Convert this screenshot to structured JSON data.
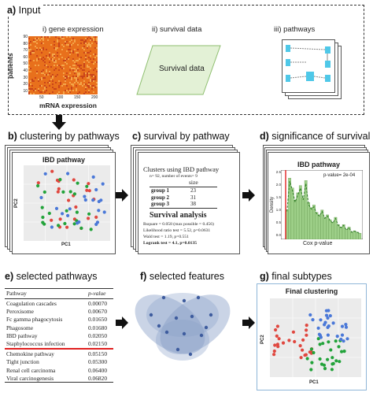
{
  "panel_a": {
    "letter": "a)",
    "title": "Input",
    "sub_i": "i) gene expression",
    "sub_ii": "ii) survival data",
    "sub_iii": "iii) pathways",
    "ylabel": "patients",
    "xlabel": "mRNA expression",
    "yticks": [
      "90",
      "80",
      "70",
      "60",
      "50",
      "40",
      "30",
      "20",
      "10"
    ],
    "xticks": [
      "50",
      "100",
      "150",
      "200"
    ],
    "survival_label": "Survival data"
  },
  "panel_b": {
    "letter": "b)",
    "title": "clustering by pathways",
    "plot_title": "IBD pathway",
    "xlabel": "PC1",
    "ylabel": "PC2"
  },
  "panel_c": {
    "letter": "c)",
    "title": "survival by pathway",
    "heading": "Clusters using IBD pathway",
    "subheading": "n= 92, number of events= 9",
    "size_header": "size",
    "groups": [
      {
        "name": "group 1",
        "size": "23"
      },
      {
        "name": "group 2",
        "size": "31"
      },
      {
        "name": "group 3",
        "size": "38"
      }
    ],
    "analysis_title": "Survival analysis",
    "stats": [
      "Rsquare = 0.058  (max possible = 0.456)",
      "Likelihood ratio test = 5.52,  p=0.0631",
      "Wald test    = 1.19,  p=0.551",
      "Logrank test = 4.1,  p=0.0135"
    ]
  },
  "panel_d": {
    "letter": "d)",
    "title": "significance of survival",
    "plot_title": "IBD pathway",
    "annotation": "p-value= 2e-04",
    "xlabel": "Cox p-value",
    "ylabel": "Density",
    "yticks": [
      "2.5",
      "2.0",
      "1.5",
      "1.0",
      "0.5",
      "0.0"
    ],
    "xticks": [
      "0.00",
      "0.25",
      "0.50",
      "0.75",
      "1.00"
    ]
  },
  "panel_e": {
    "letter": "e)",
    "title": "selected pathways",
    "col_pathway": "Pathway",
    "col_pvalue": "p-value",
    "rows_selected": [
      {
        "pathway": "Coagulation cascades",
        "pvalue": "0.00070"
      },
      {
        "pathway": "Peroxisome",
        "pvalue": "0.00670"
      },
      {
        "pathway": "Fc gamma phagocytosis",
        "pvalue": "0.01650"
      },
      {
        "pathway": "Phagosome",
        "pvalue": "0.01680"
      },
      {
        "pathway": "IBD pathway",
        "pvalue": "0.02050"
      },
      {
        "pathway": "Staphylococcus infection",
        "pvalue": "0.02150"
      }
    ],
    "rows_other": [
      {
        "pathway": "Chemokine pathway",
        "pvalue": "0.05150"
      },
      {
        "pathway": "Tight junction",
        "pvalue": "0.05300"
      },
      {
        "pathway": "Renal cell carcinoma",
        "pvalue": "0.06400"
      },
      {
        "pathway": "Viral carcinogenesis",
        "pvalue": "0.06820"
      }
    ]
  },
  "panel_f": {
    "letter": "f)",
    "title": "selected features"
  },
  "panel_g": {
    "letter": "g)",
    "title": "final subtypes",
    "plot_title": "Final clustering",
    "xlabel": "PC1",
    "ylabel": "PC2"
  },
  "colors": {
    "red": "#e0473f",
    "green": "#22a33a",
    "blue": "#4a78d8",
    "heat_bg": "#e8701c",
    "venn": "#8aa0c8",
    "survival_fill": "#e3f1d6",
    "pathway_box": "#4fc8e8",
    "red_rule": "#e02020"
  }
}
